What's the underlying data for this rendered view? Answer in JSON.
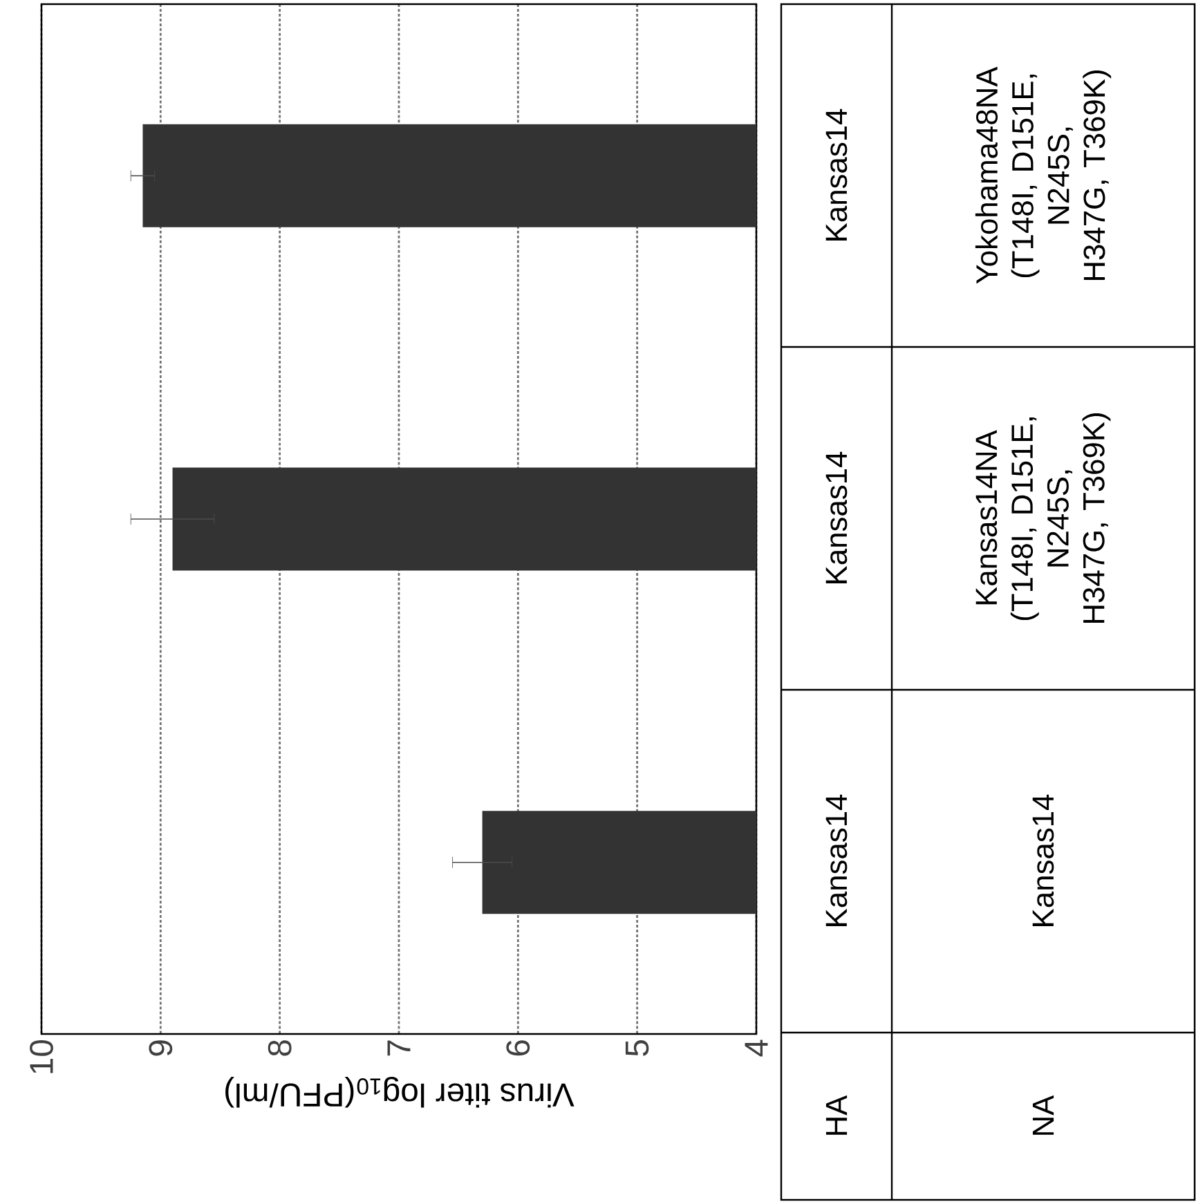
{
  "chart_data": {
    "type": "bar",
    "orientation": "horizontal",
    "categories": [
      null,
      null,
      null
    ],
    "values": [
      9.15,
      8.9,
      6.3
    ],
    "errors": [
      0.1,
      0.35,
      0.25
    ],
    "color": "#333333",
    "xlim": [
      10,
      4
    ],
    "xticks": [
      10,
      9,
      8,
      7,
      6,
      5,
      4
    ],
    "xlabel": "Virus titer log$_{10}$(PFU/ml)",
    "grid": "x",
    "annotations": [
      "HA",
      "NA",
      "Kansas14",
      "Yokohama48NA (T148I, D151E, N245S, H347G, T369K)",
      "Kansas14",
      "Kansas14NA (T148I, D151E, N245S, H347G, T369K)",
      "Kansas14",
      "Kansas14"
    ]
  }
}
